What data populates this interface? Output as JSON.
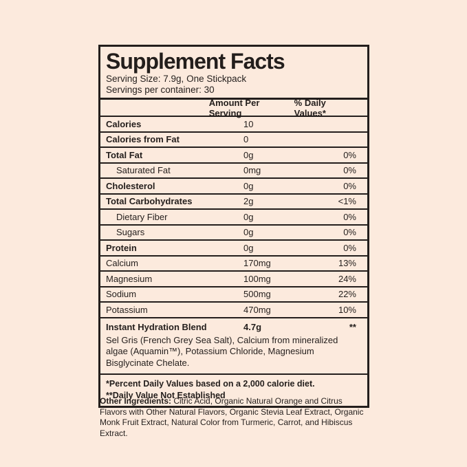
{
  "colors": {
    "background": "#fceadd",
    "text": "#231e1c",
    "border": "#231e1c"
  },
  "label": {
    "title": "Supplement Facts",
    "serving_size": "Serving Size: 7.9g, One Stickpack",
    "servings_per_container": "Servings per container: 30",
    "columns": {
      "amount": "Amount Per Serving",
      "daily_value": "% Daily Values*"
    },
    "rows": [
      {
        "name": "Calories",
        "amount": "10",
        "dv": ""
      },
      {
        "name": "Calories from Fat",
        "amount": "0",
        "dv": ""
      },
      {
        "name": "Total Fat",
        "amount": "0g",
        "dv": "0%"
      },
      {
        "name": "Saturated Fat",
        "amount": "0mg",
        "dv": "0%"
      },
      {
        "name": "Cholesterol",
        "amount": "0g",
        "dv": "0%"
      },
      {
        "name": "Total Carbohydrates",
        "amount": "2g",
        "dv": "<1%"
      },
      {
        "name": "Dietary Fiber",
        "amount": "0g",
        "dv": "0%"
      },
      {
        "name": "Sugars",
        "amount": "0g",
        "dv": "0%"
      },
      {
        "name": "Protein",
        "amount": "0g",
        "dv": "0%"
      },
      {
        "name": "Calcium",
        "amount": "170mg",
        "dv": "13%"
      },
      {
        "name": "Magnesium",
        "amount": "100mg",
        "dv": "24%"
      },
      {
        "name": "Sodium",
        "amount": "500mg",
        "dv": "22%"
      },
      {
        "name": "Potassium",
        "amount": "470mg",
        "dv": "10%"
      }
    ],
    "blend": {
      "name": "Instant Hydration Blend",
      "amount": "4.7g",
      "dv": "**",
      "description": "Sel Gris (French Grey Sea Salt), Calcium from mineralized algae (Aquamin™), Potassium Chloride, Magnesium Bisglycinate Chelate."
    },
    "footnotes": [
      "*Percent Daily Values based on a 2,000 calorie diet.",
      "**Daily Value Not Established"
    ]
  },
  "other_ingredients": {
    "label": "Other Ingredients:",
    "text": " Citric Acid, Organic Natural Orange and Citrus Flavors with Other Natural Flavors, Organic Stevia Leaf Extract, Organic Monk Fruit Extract, Natural Color from Turmeric, Carrot, and Hibiscus Extract."
  }
}
